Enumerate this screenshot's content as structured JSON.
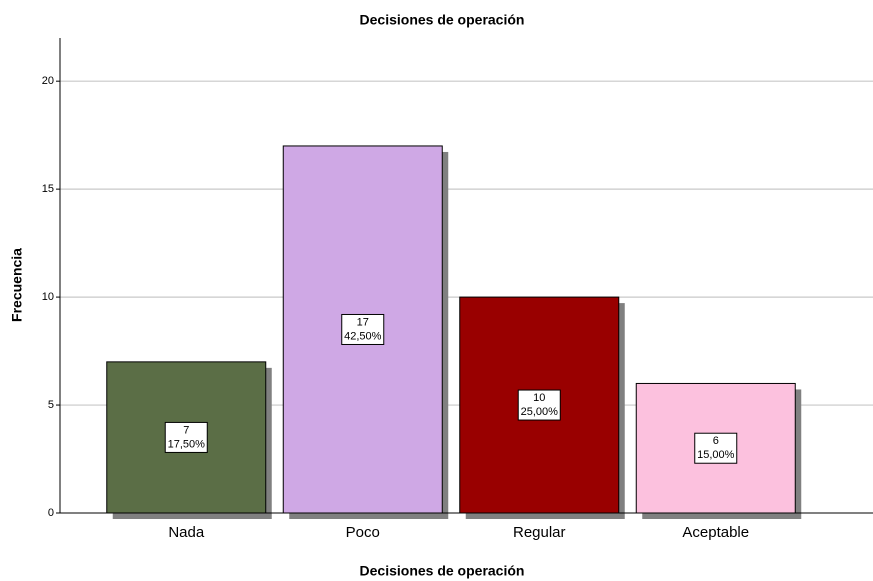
{
  "chart_data": {
    "type": "bar",
    "title": "Decisiones de operación",
    "x_label": "Decisiones de operación",
    "y_label": "Frecuencia",
    "categories": [
      "Nada",
      "Poco",
      "Regular",
      "Aceptable"
    ],
    "values": [
      7,
      17,
      10,
      6
    ],
    "percent_values": [
      17.5,
      42.5,
      25,
      15
    ],
    "percent_labels": [
      "17,50%",
      "42,50%",
      "25,00%",
      "15,00%"
    ],
    "colors": [
      "#5b6e46",
      "#cfa8e5",
      "#990000",
      "#fcc1de"
    ],
    "ylim": [
      0,
      22
    ],
    "yticks": [
      0,
      5,
      10,
      15,
      20
    ],
    "grid": true
  }
}
